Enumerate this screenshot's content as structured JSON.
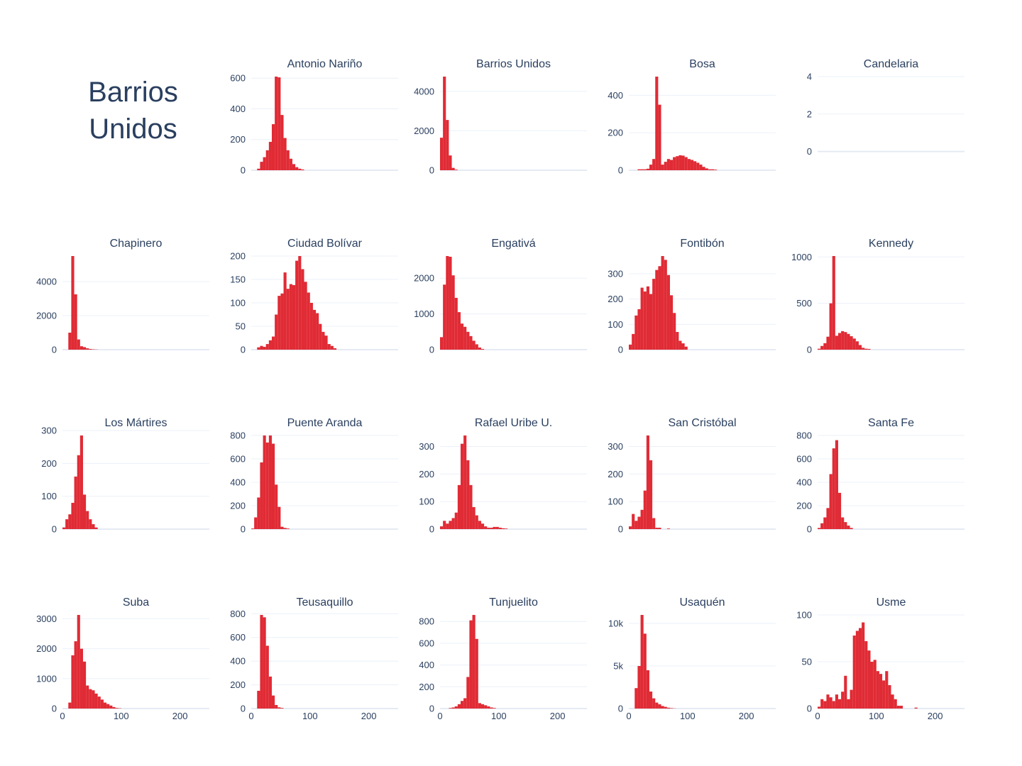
{
  "title": "Barrios Unidos",
  "colors": {
    "bar": "#e02b35",
    "text": "#2a3f5f",
    "grid": "#ebf0f8"
  },
  "chart_data": [
    {
      "type": "histogram",
      "title": "Antonio Nariño",
      "ylim": [
        0,
        610
      ],
      "yticks": [
        0,
        200,
        400,
        600
      ],
      "ytick_labels": [
        "0",
        "200",
        "400",
        "600"
      ],
      "bin_width": 5,
      "bin_start": 10,
      "values": [
        10,
        55,
        85,
        130,
        185,
        300,
        610,
        605,
        360,
        210,
        130,
        75,
        40,
        20,
        10,
        5
      ]
    },
    {
      "type": "histogram",
      "title": "Barrios Unidos",
      "ylim": [
        0,
        4750
      ],
      "yticks": [
        0,
        2000,
        4000
      ],
      "ytick_labels": [
        "0",
        "2000",
        "4000"
      ],
      "bin_width": 5,
      "bin_start": 0,
      "values": [
        1650,
        4750,
        2550,
        750,
        120,
        30
      ]
    },
    {
      "type": "histogram",
      "title": "Bosa",
      "ylim": [
        0,
        500
      ],
      "yticks": [
        0,
        200,
        400
      ],
      "ytick_labels": [
        "0",
        "200",
        "400"
      ],
      "bin_width": 5,
      "bin_start": 15,
      "values": [
        5,
        5,
        5,
        8,
        30,
        60,
        500,
        350,
        30,
        45,
        60,
        55,
        70,
        75,
        80,
        78,
        70,
        60,
        55,
        48,
        40,
        30,
        18,
        10,
        5,
        5,
        3
      ]
    },
    {
      "type": "histogram",
      "title": "Candelaria",
      "ylim": [
        -1,
        4
      ],
      "yticks": [
        0,
        2,
        4
      ],
      "ytick_labels": [
        "0",
        "2",
        "4"
      ],
      "bin_width": 5,
      "bin_start": 0,
      "values": []
    },
    {
      "type": "histogram",
      "title": "Chapinero",
      "ylim": [
        0,
        5500
      ],
      "yticks": [
        0,
        2000,
        4000
      ],
      "ytick_labels": [
        "0",
        "2000",
        "4000"
      ],
      "bin_width": 5,
      "bin_start": 10,
      "values": [
        1000,
        5500,
        3250,
        600,
        200,
        150,
        80,
        40,
        20,
        10
      ]
    },
    {
      "type": "histogram",
      "title": "Ciudad Bolívar",
      "ylim": [
        0,
        200
      ],
      "yticks": [
        0,
        50,
        100,
        150,
        200
      ],
      "ytick_labels": [
        "0",
        "50",
        "100",
        "150",
        "200"
      ],
      "bin_width": 5,
      "bin_start": 10,
      "values": [
        5,
        8,
        6,
        12,
        20,
        28,
        75,
        115,
        120,
        165,
        130,
        140,
        138,
        190,
        200,
        172,
        145,
        122,
        100,
        85,
        78,
        55,
        38,
        30,
        12,
        8,
        3
      ]
    },
    {
      "type": "histogram",
      "title": "Engativá",
      "ylim": [
        0,
        2620
      ],
      "yticks": [
        0,
        1000,
        2000
      ],
      "ytick_labels": [
        "0",
        "1000",
        "2000"
      ],
      "bin_width": 5,
      "bin_start": 0,
      "values": [
        350,
        1820,
        2620,
        2600,
        2080,
        1450,
        1050,
        730,
        640,
        500,
        380,
        250,
        150,
        60,
        20
      ]
    },
    {
      "type": "histogram",
      "title": "Fontibón",
      "ylim": [
        0,
        370
      ],
      "yticks": [
        0,
        100,
        200,
        300
      ],
      "ytick_labels": [
        "0",
        "100",
        "200",
        "300"
      ],
      "bin_width": 5,
      "bin_start": 0,
      "values": [
        20,
        62,
        135,
        160,
        245,
        230,
        250,
        220,
        280,
        315,
        330,
        370,
        355,
        295,
        215,
        145,
        70,
        35,
        25,
        12
      ]
    },
    {
      "type": "histogram",
      "title": "Kennedy",
      "ylim": [
        0,
        1010
      ],
      "yticks": [
        0,
        500,
        1000
      ],
      "ytick_labels": [
        "0",
        "500",
        "1000"
      ],
      "bin_width": 5,
      "bin_start": 0,
      "values": [
        10,
        40,
        70,
        140,
        500,
        1010,
        150,
        180,
        200,
        190,
        170,
        145,
        120,
        90,
        50,
        20,
        10,
        8
      ]
    },
    {
      "type": "histogram",
      "title": "Los Mártires",
      "ylim": [
        0,
        285
      ],
      "yticks": [
        0,
        100,
        200,
        300
      ],
      "ytick_labels": [
        "0",
        "100",
        "200",
        "300"
      ],
      "bin_width": 5,
      "bin_start": 0,
      "values": [
        5,
        30,
        45,
        80,
        160,
        225,
        285,
        105,
        55,
        30,
        15,
        5
      ]
    },
    {
      "type": "histogram",
      "title": "Puente Aranda",
      "ylim": [
        0,
        800
      ],
      "yticks": [
        0,
        200,
        400,
        600,
        800
      ],
      "ytick_labels": [
        "0",
        "200",
        "400",
        "600",
        "800"
      ],
      "bin_width": 5,
      "bin_start": 0,
      "values": [
        5,
        100,
        270,
        570,
        800,
        740,
        800,
        730,
        380,
        190,
        20,
        10,
        5
      ]
    },
    {
      "type": "histogram",
      "title": "Rafael Uribe U.",
      "ylim": [
        0,
        340
      ],
      "yticks": [
        0,
        100,
        200,
        300
      ],
      "ytick_labels": [
        "0",
        "100",
        "200",
        "300"
      ],
      "bin_width": 5,
      "bin_start": 0,
      "values": [
        10,
        30,
        20,
        30,
        40,
        60,
        160,
        310,
        340,
        250,
        160,
        80,
        50,
        30,
        20,
        10,
        5,
        5,
        8,
        8,
        5,
        3,
        2
      ]
    },
    {
      "type": "histogram",
      "title": "San Cristóbal",
      "ylim": [
        0,
        340
      ],
      "yticks": [
        0,
        100,
        200,
        300
      ],
      "ytick_labels": [
        "0",
        "100",
        "200",
        "300"
      ],
      "bin_width": 5,
      "bin_start": 0,
      "values": [
        10,
        55,
        30,
        45,
        70,
        140,
        340,
        250,
        40,
        5,
        5,
        0,
        0,
        2
      ]
    },
    {
      "type": "histogram",
      "title": "Santa Fe",
      "ylim": [
        0,
        800
      ],
      "yticks": [
        0,
        200,
        400,
        600,
        800
      ],
      "ytick_labels": [
        "0",
        "200",
        "400",
        "600",
        "800"
      ],
      "bin_width": 5,
      "bin_start": 0,
      "values": [
        10,
        50,
        100,
        180,
        470,
        690,
        760,
        310,
        100,
        60,
        30,
        10
      ]
    },
    {
      "type": "histogram",
      "title": "Suba",
      "ylim": [
        0,
        3130
      ],
      "yticks": [
        0,
        1000,
        2000,
        3000
      ],
      "ytick_labels": [
        "0",
        "1000",
        "2000",
        "3000"
      ],
      "bin_width": 5,
      "bin_start": 10,
      "values": [
        200,
        1780,
        2250,
        3130,
        2000,
        1570,
        770,
        650,
        610,
        500,
        400,
        300,
        200,
        150,
        100,
        50,
        20,
        10
      ]
    },
    {
      "type": "histogram",
      "title": "Teusaquillo",
      "ylim": [
        0,
        790
      ],
      "yticks": [
        0,
        200,
        400,
        600,
        800
      ],
      "ytick_labels": [
        "0",
        "200",
        "400",
        "600",
        "800"
      ],
      "bin_width": 5,
      "bin_start": 10,
      "values": [
        150,
        790,
        770,
        530,
        270,
        110,
        30,
        10,
        5
      ]
    },
    {
      "type": "histogram",
      "title": "Tunjuelito",
      "ylim": [
        0,
        860
      ],
      "yticks": [
        0,
        200,
        400,
        600,
        800
      ],
      "ytick_labels": [
        "0",
        "200",
        "400",
        "600",
        "800"
      ],
      "bin_width": 5,
      "bin_start": 15,
      "values": [
        5,
        10,
        20,
        40,
        70,
        95,
        290,
        810,
        860,
        640,
        50,
        40,
        30,
        20,
        10,
        5
      ]
    },
    {
      "type": "histogram",
      "title": "Usaquén",
      "ylim": [
        0,
        11000
      ],
      "yticks": [
        0,
        5000,
        10000
      ],
      "ytick_labels": [
        "0",
        "5k",
        "10k"
      ],
      "bin_width": 5,
      "bin_start": 10,
      "values": [
        2400,
        5000,
        11000,
        8800,
        4500,
        2000,
        1200,
        700,
        500,
        300,
        200,
        100,
        50,
        20
      ]
    },
    {
      "type": "histogram",
      "title": "Usme",
      "ylim": [
        0,
        100
      ],
      "yticks": [
        0,
        50,
        100
      ],
      "ytick_labels": [
        "0",
        "50",
        "100"
      ],
      "bin_width": 5,
      "bin_start": 0,
      "values": [
        2,
        10,
        8,
        15,
        12,
        8,
        15,
        10,
        18,
        35,
        10,
        20,
        78,
        83,
        86,
        92,
        72,
        62,
        50,
        52,
        40,
        37,
        30,
        40,
        25,
        15,
        10,
        3,
        3,
        0,
        0,
        0,
        0,
        1
      ]
    }
  ],
  "x_axis": {
    "range": [
      0,
      250
    ],
    "ticks": [
      0,
      100,
      200
    ],
    "tick_labels": [
      "0",
      "100",
      "200"
    ]
  }
}
